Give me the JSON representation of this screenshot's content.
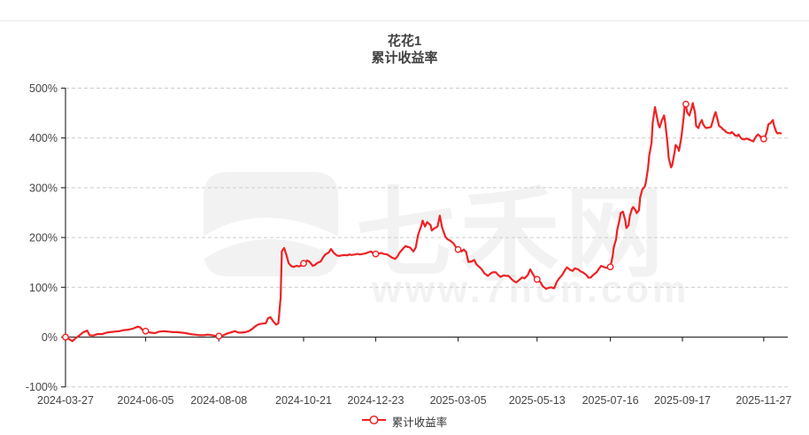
{
  "page": {
    "background": "#ffffff",
    "top_divider_color": "#e9e9e9"
  },
  "title": {
    "line1": "花花1",
    "line2": "累计收益率"
  },
  "legend": {
    "label": "累计收益率",
    "marker_color": "#ee2224",
    "marker_shape": "line-with-hollow-circle",
    "position": "bottom-center"
  },
  "watermark": {
    "brand_text": "七禾网",
    "url_text": "www.7hcn.com"
  },
  "chart_data": {
    "type": "line",
    "title": "花花1 累计收益率",
    "series_name": "累计收益率",
    "line_color": "#ee2224",
    "marker_fill": "#ffffff",
    "grid": true,
    "grid_color": "#cccccc",
    "axis_color": "#333333",
    "label_color": "#464646",
    "x_axis_unit": "days since 2024-03-27",
    "x_start_date": "2024-03-27",
    "x_domain": [
      0,
      631
    ],
    "y_unit": "%",
    "ylim": [
      -100,
      500
    ],
    "y_ticks": [
      {
        "v": 500,
        "label": "500%"
      },
      {
        "v": 400,
        "label": "400%"
      },
      {
        "v": 300,
        "label": "300%"
      },
      {
        "v": 200,
        "label": "200%"
      },
      {
        "v": 100,
        "label": "100%"
      },
      {
        "v": 0,
        "label": "0%"
      },
      {
        "v": -100,
        "label": "-100%"
      }
    ],
    "x_ticks": [
      {
        "d": 0,
        "label": "2024-03-27"
      },
      {
        "d": 70,
        "label": "2024-06-05"
      },
      {
        "d": 134,
        "label": "2024-08-08"
      },
      {
        "d": 208,
        "label": "2024-10-21"
      },
      {
        "d": 271,
        "label": "2024-12-23"
      },
      {
        "d": 343,
        "label": "2025-03-05"
      },
      {
        "d": 412,
        "label": "2025-05-13"
      },
      {
        "d": 476,
        "label": "2025-07-16"
      },
      {
        "d": 539,
        "label": "2025-09-17"
      },
      {
        "d": 610,
        "label": "2025-11-27"
      }
    ],
    "points": [
      [
        0,
        0
      ],
      [
        3,
        -4
      ],
      [
        6,
        -8
      ],
      [
        9,
        -2
      ],
      [
        12,
        3
      ],
      [
        15,
        9
      ],
      [
        19,
        13
      ],
      [
        21,
        4
      ],
      [
        24,
        3
      ],
      [
        28,
        6
      ],
      [
        32,
        6
      ],
      [
        36,
        9
      ],
      [
        39,
        10
      ],
      [
        43,
        11
      ],
      [
        47,
        12
      ],
      [
        51,
        14
      ],
      [
        55,
        15
      ],
      [
        59,
        17
      ],
      [
        63,
        21
      ],
      [
        65,
        20
      ],
      [
        68,
        13
      ],
      [
        70,
        12
      ],
      [
        71,
        11
      ],
      [
        74,
        9
      ],
      [
        78,
        8
      ],
      [
        82,
        11
      ],
      [
        86,
        12
      ],
      [
        90,
        11
      ],
      [
        94,
        10
      ],
      [
        97,
        10
      ],
      [
        101,
        9
      ],
      [
        105,
        8
      ],
      [
        109,
        6
      ],
      [
        113,
        5
      ],
      [
        117,
        4
      ],
      [
        121,
        4
      ],
      [
        124,
        5
      ],
      [
        128,
        4
      ],
      [
        132,
        2
      ],
      [
        134,
        2
      ],
      [
        136,
        1
      ],
      [
        138,
        4
      ],
      [
        141,
        7
      ],
      [
        145,
        10
      ],
      [
        148,
        12
      ],
      [
        151,
        9
      ],
      [
        154,
        9
      ],
      [
        157,
        10
      ],
      [
        160,
        12
      ],
      [
        163,
        16
      ],
      [
        166,
        22
      ],
      [
        169,
        26
      ],
      [
        172,
        27
      ],
      [
        175,
        28
      ],
      [
        177,
        38
      ],
      [
        179,
        40
      ],
      [
        182,
        30
      ],
      [
        184,
        25
      ],
      [
        186,
        28
      ],
      [
        188,
        80
      ],
      [
        189,
        172
      ],
      [
        191,
        179
      ],
      [
        193,
        165
      ],
      [
        195,
        148
      ],
      [
        197,
        143
      ],
      [
        199,
        141
      ],
      [
        202,
        143
      ],
      [
        204,
        142
      ],
      [
        206,
        144
      ],
      [
        208,
        148
      ],
      [
        211,
        154
      ],
      [
        213,
        152
      ],
      [
        216,
        143
      ],
      [
        218,
        145
      ],
      [
        220,
        149
      ],
      [
        223,
        152
      ],
      [
        225,
        160
      ],
      [
        227,
        166
      ],
      [
        230,
        170
      ],
      [
        232,
        177
      ],
      [
        234,
        170
      ],
      [
        237,
        164
      ],
      [
        239,
        163
      ],
      [
        241,
        164
      ],
      [
        244,
        165
      ],
      [
        246,
        164
      ],
      [
        248,
        166
      ],
      [
        250,
        165
      ],
      [
        253,
        166
      ],
      [
        255,
        167
      ],
      [
        257,
        166
      ],
      [
        260,
        167
      ],
      [
        262,
        168
      ],
      [
        264,
        170
      ],
      [
        267,
        172
      ],
      [
        269,
        167
      ],
      [
        271,
        167
      ],
      [
        274,
        168
      ],
      [
        276,
        169
      ],
      [
        278,
        167
      ],
      [
        281,
        166
      ],
      [
        283,
        163
      ],
      [
        285,
        160
      ],
      [
        288,
        157
      ],
      [
        290,
        162
      ],
      [
        292,
        170
      ],
      [
        295,
        178
      ],
      [
        297,
        183
      ],
      [
        299,
        181
      ],
      [
        301,
        180
      ],
      [
        304,
        172
      ],
      [
        306,
        180
      ],
      [
        308,
        205
      ],
      [
        311,
        225
      ],
      [
        312,
        234
      ],
      [
        314,
        222
      ],
      [
        316,
        231
      ],
      [
        319,
        225
      ],
      [
        320,
        214
      ],
      [
        322,
        218
      ],
      [
        325,
        222
      ],
      [
        327,
        244
      ],
      [
        329,
        220
      ],
      [
        332,
        201
      ],
      [
        334,
        196
      ],
      [
        336,
        194
      ],
      [
        339,
        188
      ],
      [
        341,
        181
      ],
      [
        343,
        176
      ],
      [
        346,
        172
      ],
      [
        348,
        176
      ],
      [
        350,
        171
      ],
      [
        352,
        151
      ],
      [
        355,
        152
      ],
      [
        357,
        155
      ],
      [
        359,
        146
      ],
      [
        362,
        140
      ],
      [
        364,
        135
      ],
      [
        366,
        128
      ],
      [
        369,
        123
      ],
      [
        371,
        127
      ],
      [
        373,
        130
      ],
      [
        376,
        130
      ],
      [
        378,
        125
      ],
      [
        380,
        121
      ],
      [
        383,
        124
      ],
      [
        385,
        123
      ],
      [
        387,
        123
      ],
      [
        390,
        116
      ],
      [
        392,
        112
      ],
      [
        394,
        110
      ],
      [
        397,
        116
      ],
      [
        399,
        120
      ],
      [
        401,
        118
      ],
      [
        404,
        125
      ],
      [
        406,
        136
      ],
      [
        408,
        128
      ],
      [
        410,
        120
      ],
      [
        412,
        116
      ],
      [
        415,
        110
      ],
      [
        417,
        102
      ],
      [
        420,
        97
      ],
      [
        422,
        99
      ],
      [
        424,
        100
      ],
      [
        427,
        98
      ],
      [
        429,
        110
      ],
      [
        431,
        117
      ],
      [
        434,
        125
      ],
      [
        436,
        133
      ],
      [
        438,
        140
      ],
      [
        441,
        135
      ],
      [
        443,
        133
      ],
      [
        445,
        138
      ],
      [
        448,
        136
      ],
      [
        450,
        132
      ],
      [
        452,
        130
      ],
      [
        455,
        125
      ],
      [
        457,
        119
      ],
      [
        459,
        120
      ],
      [
        461,
        125
      ],
      [
        464,
        130
      ],
      [
        466,
        137
      ],
      [
        468,
        143
      ],
      [
        471,
        140
      ],
      [
        473,
        139
      ],
      [
        475,
        139
      ],
      [
        476,
        141
      ],
      [
        478,
        162
      ],
      [
        479,
        180
      ],
      [
        481,
        196
      ],
      [
        482,
        215
      ],
      [
        484,
        235
      ],
      [
        485,
        249
      ],
      [
        487,
        252
      ],
      [
        489,
        235
      ],
      [
        490,
        219
      ],
      [
        492,
        225
      ],
      [
        493,
        243
      ],
      [
        495,
        258
      ],
      [
        496,
        261
      ],
      [
        498,
        255
      ],
      [
        499,
        249
      ],
      [
        501,
        255
      ],
      [
        502,
        280
      ],
      [
        504,
        297
      ],
      [
        506,
        302
      ],
      [
        507,
        310
      ],
      [
        509,
        340
      ],
      [
        510,
        365
      ],
      [
        512,
        390
      ],
      [
        513,
        430
      ],
      [
        515,
        462
      ],
      [
        516,
        450
      ],
      [
        518,
        427
      ],
      [
        519,
        421
      ],
      [
        521,
        435
      ],
      [
        523,
        445
      ],
      [
        524,
        430
      ],
      [
        526,
        388
      ],
      [
        527,
        360
      ],
      [
        529,
        341
      ],
      [
        530,
        345
      ],
      [
        532,
        370
      ],
      [
        533,
        386
      ],
      [
        535,
        380
      ],
      [
        536,
        374
      ],
      [
        538,
        400
      ],
      [
        540,
        440
      ],
      [
        541,
        466
      ],
      [
        542,
        468
      ],
      [
        543,
        452
      ],
      [
        545,
        445
      ],
      [
        547,
        460
      ],
      [
        548,
        470
      ],
      [
        550,
        450
      ],
      [
        551,
        424
      ],
      [
        553,
        420
      ],
      [
        554,
        428
      ],
      [
        556,
        436
      ],
      [
        557,
        428
      ],
      [
        559,
        421
      ],
      [
        560,
        420
      ],
      [
        562,
        421
      ],
      [
        564,
        422
      ],
      [
        565,
        430
      ],
      [
        567,
        446
      ],
      [
        568,
        452
      ],
      [
        570,
        434
      ],
      [
        571,
        424
      ],
      [
        573,
        421
      ],
      [
        574,
        418
      ],
      [
        576,
        415
      ],
      [
        577,
        412
      ],
      [
        579,
        410
      ],
      [
        581,
        409
      ],
      [
        582,
        412
      ],
      [
        584,
        408
      ],
      [
        585,
        405
      ],
      [
        587,
        404
      ],
      [
        588,
        407
      ],
      [
        590,
        400
      ],
      [
        591,
        398
      ],
      [
        593,
        397
      ],
      [
        595,
        399
      ],
      [
        596,
        398
      ],
      [
        598,
        396
      ],
      [
        599,
        395
      ],
      [
        601,
        393
      ],
      [
        602,
        398
      ],
      [
        604,
        405
      ],
      [
        605,
        407
      ],
      [
        607,
        403
      ],
      [
        608,
        398
      ],
      [
        610,
        398
      ],
      [
        611,
        400
      ],
      [
        613,
        415
      ],
      [
        614,
        427
      ],
      [
        616,
        430
      ],
      [
        618,
        436
      ],
      [
        619,
        425
      ],
      [
        621,
        412
      ],
      [
        622,
        409
      ],
      [
        624,
        410
      ],
      [
        625,
        409
      ]
    ],
    "markers": [
      [
        0,
        0
      ],
      [
        70,
        12
      ],
      [
        134,
        2
      ],
      [
        208,
        148
      ],
      [
        271,
        167
      ],
      [
        343,
        176
      ],
      [
        412,
        116
      ],
      [
        476,
        141
      ],
      [
        542,
        468
      ],
      [
        610,
        398
      ]
    ]
  }
}
